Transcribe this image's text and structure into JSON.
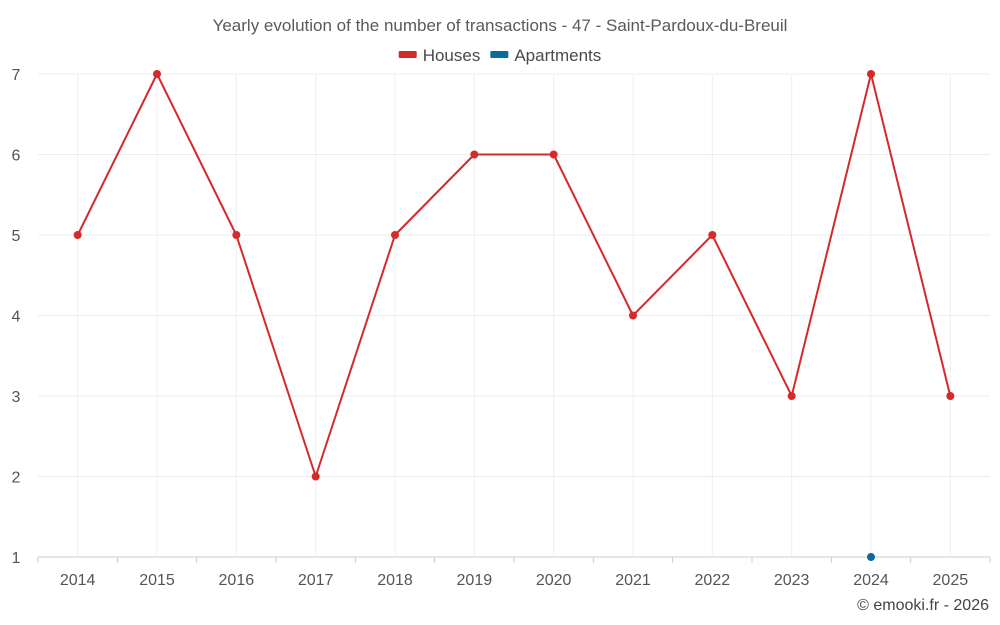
{
  "chart_data": {
    "type": "line",
    "title": "Yearly evolution of the number of transactions - 47 - Saint-Pardoux-du-Breuil",
    "xlabel": "",
    "ylabel": "",
    "categories": [
      "2014",
      "2015",
      "2016",
      "2017",
      "2018",
      "2019",
      "2020",
      "2021",
      "2022",
      "2023",
      "2024",
      "2025"
    ],
    "ylim": [
      1,
      7
    ],
    "yticks": [
      1,
      2,
      3,
      4,
      5,
      6,
      7
    ],
    "grid": true,
    "legend_position": "top-center",
    "series": [
      {
        "name": "Houses",
        "color": "#d42a2a",
        "values": [
          5,
          7,
          5,
          2,
          5,
          6,
          6,
          4,
          5,
          3,
          7,
          3
        ]
      },
      {
        "name": "Apartments",
        "color": "#0b6a9c",
        "values": [
          null,
          null,
          null,
          null,
          null,
          null,
          null,
          null,
          null,
          null,
          1,
          null
        ]
      }
    ]
  },
  "credit": "© emooki.fr - 2026"
}
